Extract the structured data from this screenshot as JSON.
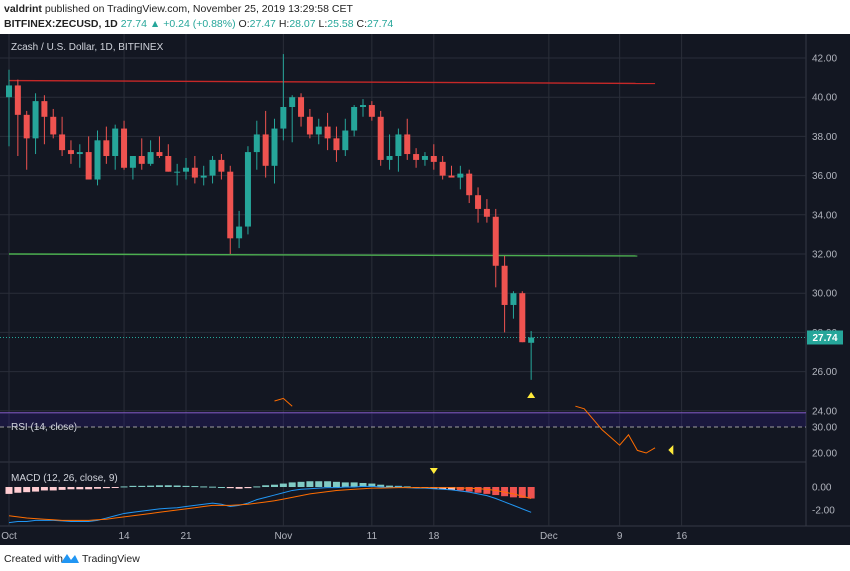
{
  "header": {
    "author": "valdrint",
    "published_text": "published on TradingView.com, November 25, 2019 13:29:58 CET",
    "symbol": "BITFINEX:ZECUSD, 1D",
    "last": "27.74",
    "change": "+0.24 (+0.88%)",
    "o_label": "O:",
    "o_val": "27.47",
    "h_label": "H:",
    "h_val": "28.07",
    "l_label": "L:",
    "l_val": "25.58",
    "c_label": "C:",
    "c_val": "27.74"
  },
  "chart_title": "Zcash / U.S. Dollar, 1D, BITFINEX",
  "price_tag": "27.74",
  "rsi_label": "RSI (14, close)",
  "macd_label": "MACD (12, 26, close, 9)",
  "footer": {
    "created_with": "Created with",
    "brand": "TradingView"
  },
  "colors": {
    "up": "#26a69a",
    "down": "#ef5350",
    "resistance": "#c62828",
    "support": "#4caf50",
    "background": "#131722",
    "marker": "#ffeb3b"
  },
  "chart_data": {
    "type": "candlestick",
    "title": "Zcash / U.S. Dollar, 1D, BITFINEX",
    "ylim": [
      24,
      43
    ],
    "y_ticks": [
      "42.00",
      "40.00",
      "38.00",
      "36.00",
      "34.00",
      "32.00",
      "30.00",
      "28.00",
      "26.00",
      "24.00"
    ],
    "x_ticks": [
      {
        "label": "Oct",
        "day": 0
      },
      {
        "label": "14",
        "day": 13
      },
      {
        "label": "21",
        "day": 20
      },
      {
        "label": "Nov",
        "day": 31
      },
      {
        "label": "11",
        "day": 41
      },
      {
        "label": "18",
        "day": 48
      },
      {
        "label": "Dec",
        "day": 61
      },
      {
        "label": "9",
        "day": 69
      },
      {
        "label": "16",
        "day": 76
      }
    ],
    "candles": [
      [
        40.0,
        41.4,
        37.5,
        40.6
      ],
      [
        40.6,
        40.9,
        37.0,
        39.1
      ],
      [
        39.1,
        39.3,
        36.3,
        37.9
      ],
      [
        37.9,
        40.2,
        37.1,
        39.8
      ],
      [
        39.8,
        40.1,
        37.6,
        39.0
      ],
      [
        39.0,
        39.4,
        37.9,
        38.1
      ],
      [
        38.1,
        39.0,
        37.0,
        37.3
      ],
      [
        37.3,
        37.8,
        36.6,
        37.1
      ],
      [
        37.1,
        37.6,
        36.4,
        37.2
      ],
      [
        37.2,
        38.0,
        35.8,
        35.8
      ],
      [
        35.8,
        38.3,
        35.5,
        37.8
      ],
      [
        37.8,
        38.5,
        36.6,
        37.0
      ],
      [
        37.0,
        38.6,
        36.3,
        38.4
      ],
      [
        38.4,
        38.8,
        36.3,
        36.4
      ],
      [
        36.4,
        37.0,
        35.8,
        37.0
      ],
      [
        37.0,
        37.9,
        36.3,
        36.6
      ],
      [
        36.6,
        37.8,
        36.5,
        37.2
      ],
      [
        37.2,
        38.0,
        36.9,
        37.0
      ],
      [
        37.0,
        37.6,
        36.2,
        36.2
      ],
      [
        36.2,
        36.6,
        35.5,
        36.2
      ],
      [
        36.2,
        36.9,
        35.8,
        36.4
      ],
      [
        36.4,
        37.0,
        35.6,
        35.9
      ],
      [
        35.9,
        36.5,
        35.5,
        36.0
      ],
      [
        36.0,
        37.0,
        35.6,
        36.8
      ],
      [
        36.8,
        37.1,
        35.8,
        36.2
      ],
      [
        36.2,
        36.5,
        32.0,
        32.8
      ],
      [
        32.8,
        34.2,
        32.3,
        33.4
      ],
      [
        33.4,
        37.5,
        33.0,
        37.2
      ],
      [
        37.2,
        38.8,
        36.3,
        38.1
      ],
      [
        38.1,
        39.3,
        35.9,
        36.5
      ],
      [
        36.5,
        38.9,
        35.6,
        38.4
      ],
      [
        38.4,
        42.2,
        37.8,
        39.5
      ],
      [
        39.5,
        40.1,
        37.7,
        40.0
      ],
      [
        40.0,
        40.2,
        38.5,
        39.0
      ],
      [
        39.0,
        39.4,
        37.9,
        38.1
      ],
      [
        38.1,
        38.9,
        37.6,
        38.5
      ],
      [
        38.5,
        39.2,
        37.3,
        37.9
      ],
      [
        37.9,
        38.5,
        36.7,
        37.3
      ],
      [
        37.3,
        38.9,
        37.0,
        38.3
      ],
      [
        38.3,
        39.6,
        38.0,
        39.5
      ],
      [
        39.5,
        39.9,
        39.0,
        39.6
      ],
      [
        39.6,
        39.8,
        38.8,
        39.0
      ],
      [
        39.0,
        39.3,
        36.5,
        36.8
      ],
      [
        36.8,
        38.1,
        36.3,
        37.0
      ],
      [
        37.0,
        38.4,
        36.2,
        38.1
      ],
      [
        38.1,
        38.9,
        36.8,
        37.1
      ],
      [
        37.1,
        37.4,
        36.4,
        36.8
      ],
      [
        36.8,
        37.2,
        36.5,
        37.0
      ],
      [
        37.0,
        37.6,
        36.3,
        36.7
      ],
      [
        36.7,
        37.0,
        35.8,
        36.0
      ],
      [
        36.0,
        36.5,
        35.9,
        35.9
      ],
      [
        35.9,
        36.5,
        35.3,
        36.1
      ],
      [
        36.1,
        36.3,
        34.6,
        35.0
      ],
      [
        35.0,
        35.4,
        33.6,
        34.3
      ],
      [
        34.3,
        34.8,
        33.6,
        33.9
      ],
      [
        33.9,
        34.3,
        30.3,
        31.4
      ],
      [
        31.4,
        31.9,
        28.0,
        29.4
      ],
      [
        29.4,
        30.1,
        28.7,
        30.0
      ],
      [
        30.0,
        30.1,
        27.5,
        27.5
      ],
      [
        27.47,
        28.07,
        25.58,
        27.74
      ]
    ],
    "lines": [
      {
        "name": "resistance",
        "color": "#c62828",
        "x": [
          0,
          73
        ],
        "y": [
          40.85,
          40.7
        ]
      },
      {
        "name": "support",
        "color": "#4caf50",
        "x": [
          0,
          71
        ],
        "y": [
          32.0,
          31.9
        ]
      }
    ],
    "rsi": {
      "label": "RSI (14, close)",
      "ticks": [
        "30.00",
        "20.00"
      ],
      "levels": [
        70,
        30
      ],
      "values": [
        [
          30,
          40
        ],
        [
          31,
          41
        ],
        [
          32,
          38
        ],
        [
          64,
          38
        ],
        [
          65,
          37
        ],
        [
          66,
          33
        ],
        [
          67,
          29
        ],
        [
          68,
          26
        ],
        [
          69,
          23
        ],
        [
          70,
          27
        ],
        [
          71,
          21
        ],
        [
          72,
          20
        ],
        [
          73,
          22
        ]
      ]
    },
    "macd": {
      "label": "MACD (12, 26, close, 9)",
      "ticks": [
        "0.00",
        "-2.00"
      ],
      "hist": [
        -0.6,
        -0.5,
        -0.45,
        -0.4,
        -0.3,
        -0.3,
        -0.25,
        -0.2,
        -0.2,
        -0.2,
        -0.15,
        -0.1,
        -0.05,
        0.05,
        0.1,
        0.1,
        0.12,
        0.15,
        0.15,
        0.13,
        0.1,
        0.08,
        0.05,
        0.03,
        0.0,
        -0.1,
        -0.15,
        -0.1,
        0.05,
        0.15,
        0.2,
        0.3,
        0.4,
        0.45,
        0.5,
        0.5,
        0.5,
        0.45,
        0.4,
        0.4,
        0.35,
        0.3,
        0.2,
        0.12,
        0.1,
        0.05,
        -0.05,
        -0.1,
        -0.15,
        -0.2,
        -0.25,
        -0.3,
        -0.4,
        -0.5,
        -0.6,
        -0.7,
        -0.8,
        -0.9,
        -0.95,
        -1.0
      ],
      "macd": [
        -3.1,
        -3.0,
        -3.0,
        -2.9,
        -2.9,
        -2.9,
        -2.95,
        -3.0,
        -3.0,
        -3.0,
        -2.9,
        -2.7,
        -2.5,
        -2.3,
        -2.2,
        -2.1,
        -2.0,
        -1.9,
        -1.85,
        -1.8,
        -1.7,
        -1.6,
        -1.5,
        -1.4,
        -1.5,
        -1.7,
        -1.6,
        -1.4,
        -1.1,
        -0.9,
        -0.7,
        -0.5,
        -0.3,
        -0.2,
        -0.15,
        -0.1,
        -0.05,
        -0.05,
        0.0,
        0.0,
        0.05,
        0.05,
        0.0,
        -0.05,
        0.0,
        -0.05,
        -0.1,
        -0.1,
        -0.15,
        -0.2,
        -0.25,
        -0.35,
        -0.45,
        -0.6,
        -0.75,
        -1.0,
        -1.3,
        -1.6,
        -1.9,
        -2.2
      ],
      "signal": [
        -2.5,
        -2.6,
        -2.7,
        -2.75,
        -2.8,
        -2.85,
        -2.9,
        -2.9,
        -2.9,
        -2.9,
        -2.85,
        -2.8,
        -2.7,
        -2.6,
        -2.5,
        -2.4,
        -2.3,
        -2.2,
        -2.1,
        -2.0,
        -1.9,
        -1.8,
        -1.7,
        -1.6,
        -1.6,
        -1.6,
        -1.55,
        -1.5,
        -1.4,
        -1.3,
        -1.2,
        -1.05,
        -0.9,
        -0.75,
        -0.6,
        -0.5,
        -0.4,
        -0.3,
        -0.25,
        -0.2,
        -0.15,
        -0.1,
        -0.1,
        -0.08,
        -0.05,
        -0.05,
        -0.05,
        -0.05,
        -0.05,
        -0.05,
        -0.05,
        -0.1,
        -0.1,
        -0.15,
        -0.2,
        -0.3,
        -0.45,
        -0.6,
        -0.8,
        -1.0
      ]
    }
  }
}
